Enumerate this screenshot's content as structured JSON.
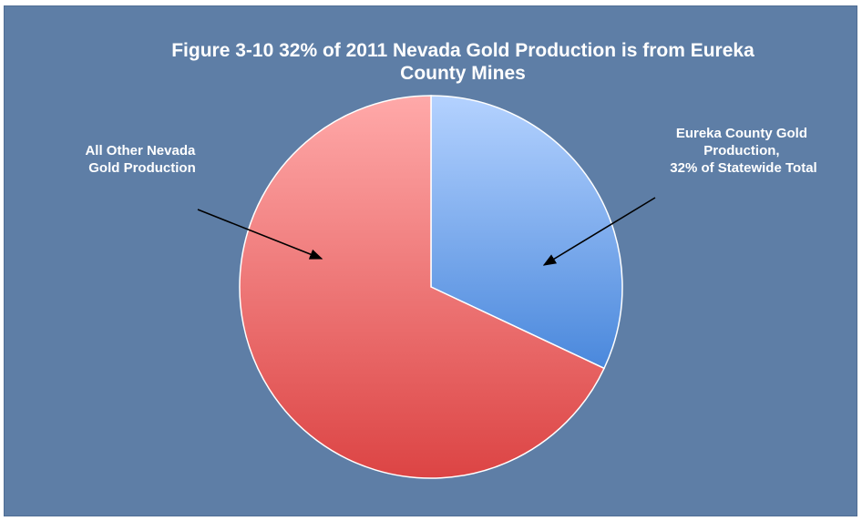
{
  "chart_data": {
    "type": "pie",
    "title_lines": [
      "Figure 3-10 32% of 2011 Nevada Gold Production is from Eureka",
      "County Mines"
    ],
    "slices": [
      {
        "label_lines": [
          "Eureka County Gold",
          "Production,",
          "32% of Statewide Total"
        ],
        "value": 32,
        "color": "#6b9be6"
      },
      {
        "label_lines": [
          "All Other Nevada",
          "Gold Production"
        ],
        "value": 68,
        "color": "#ee6c6c"
      }
    ],
    "start_angle_deg": 0,
    "direction": "clockwise",
    "legend": "none",
    "background_color": "#5e7ea6"
  }
}
